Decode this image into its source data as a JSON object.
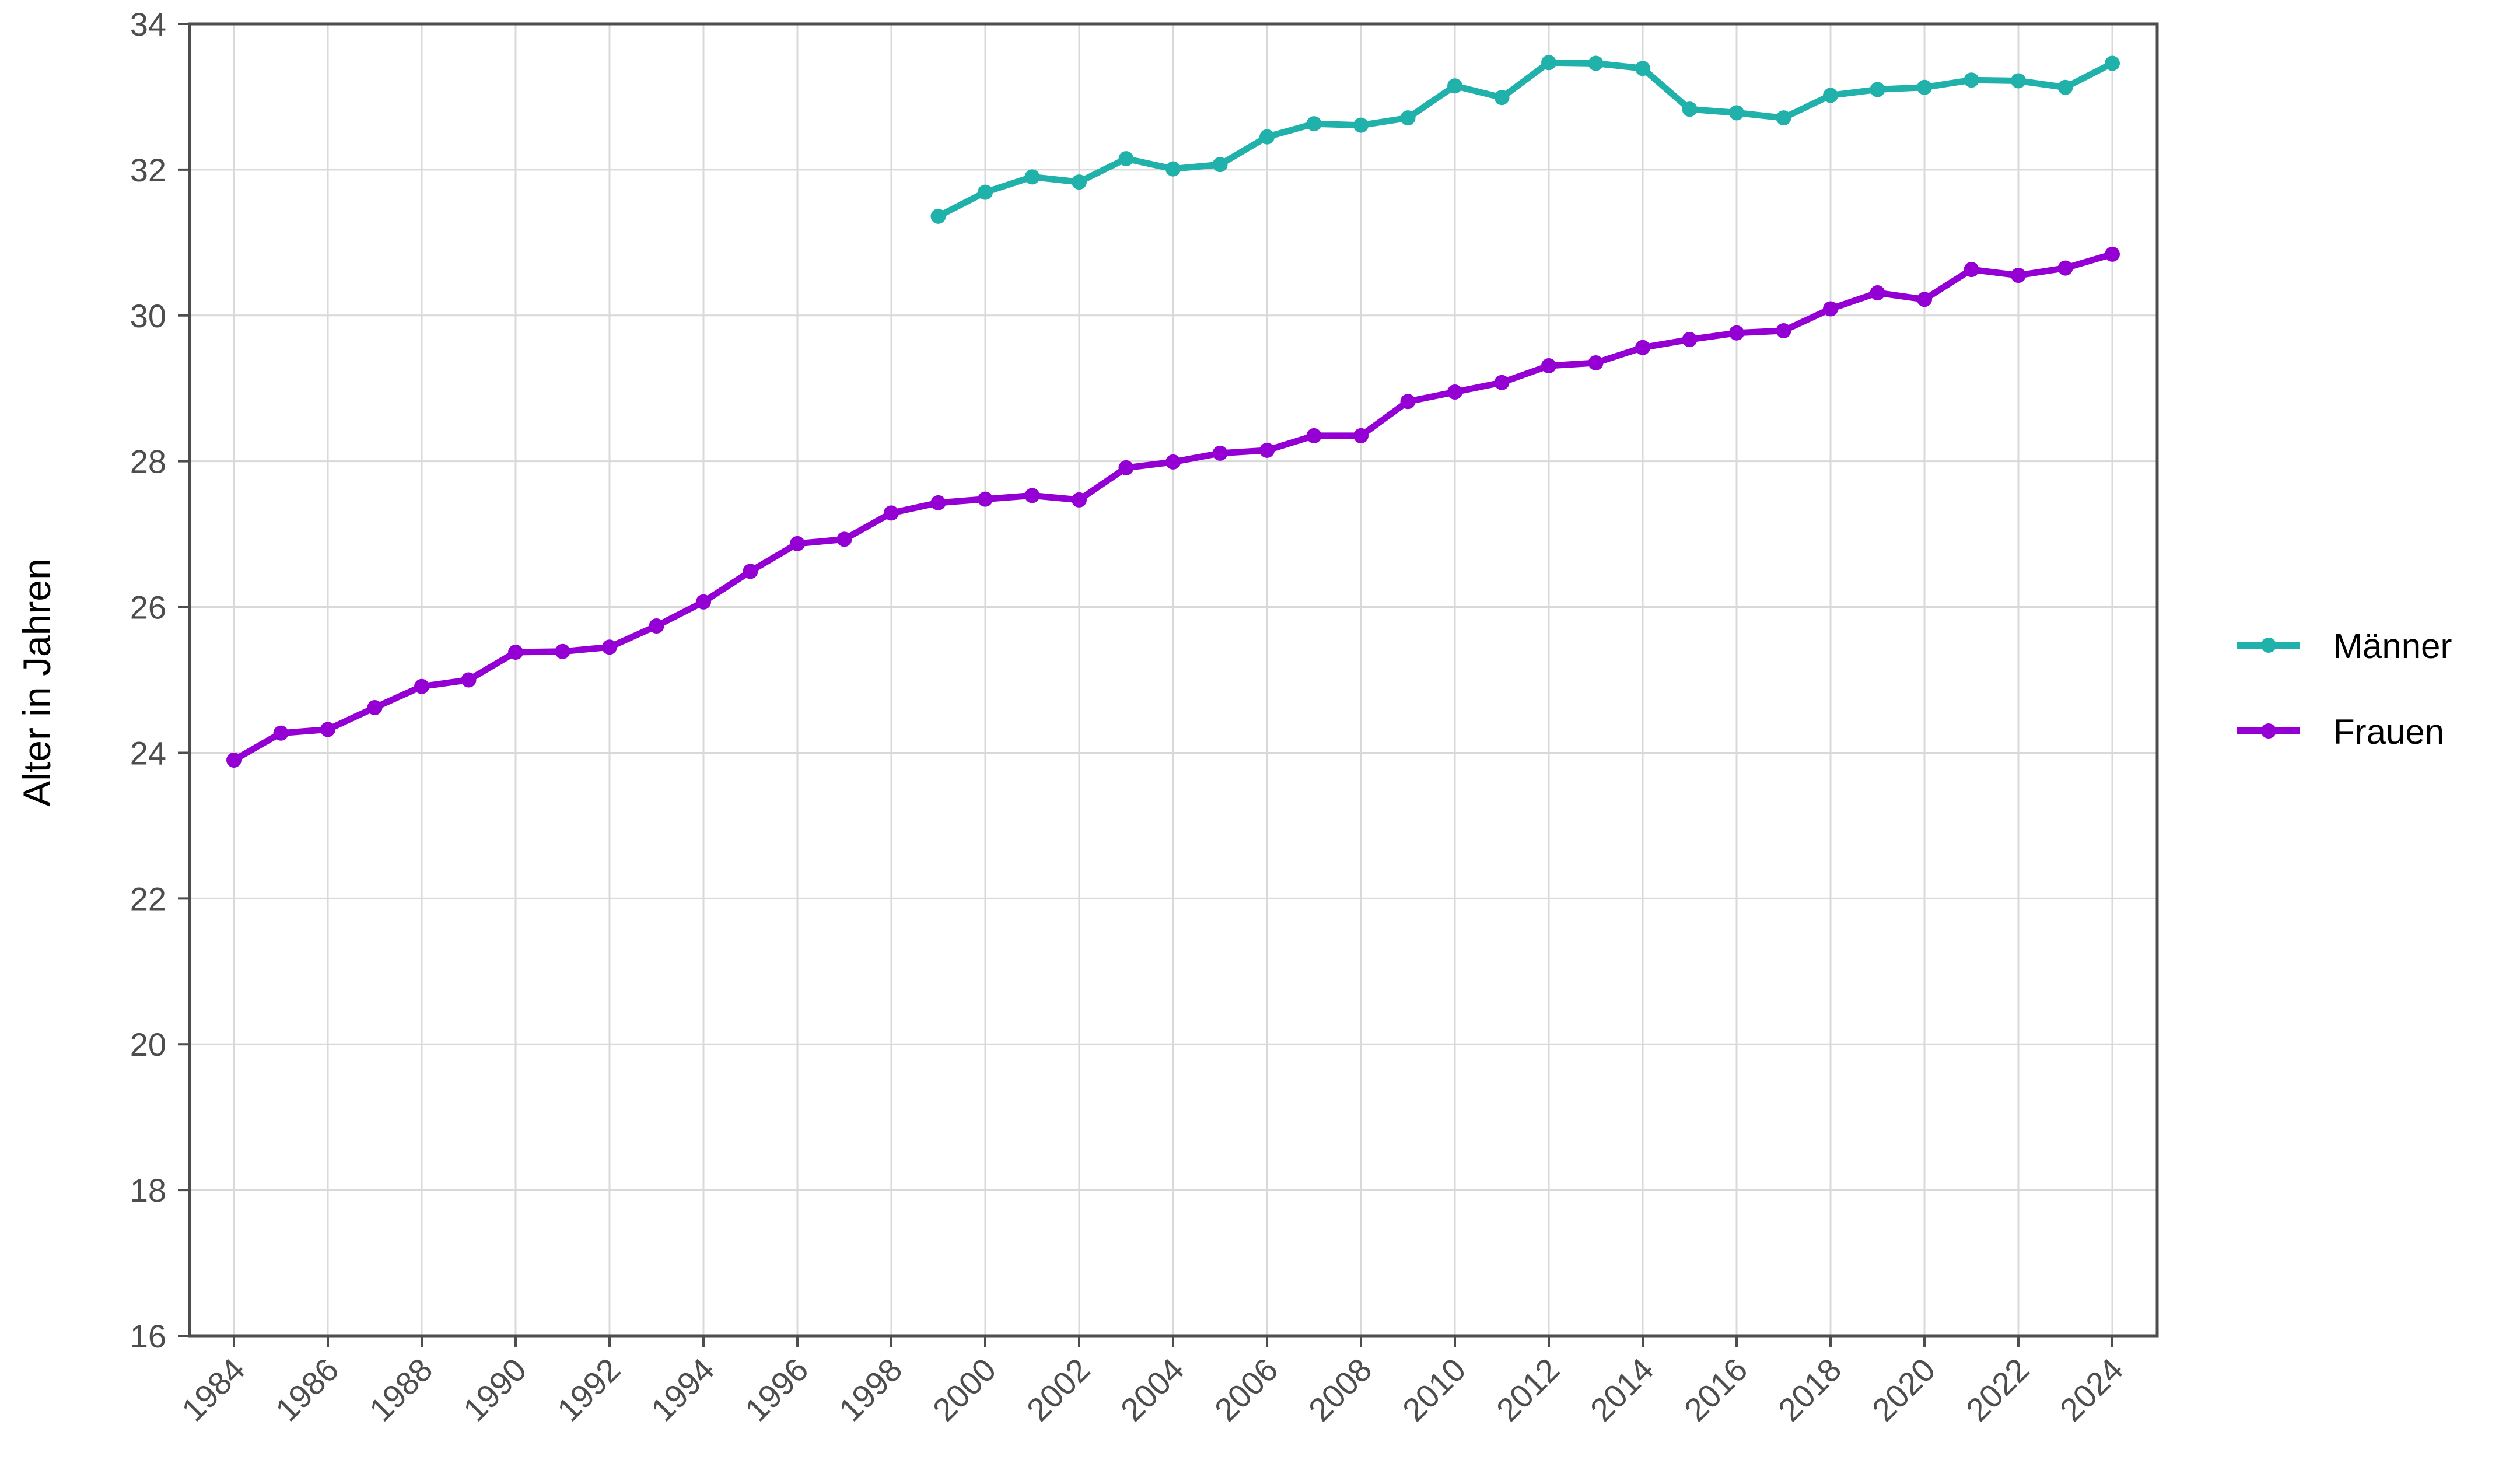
{
  "chart_data": {
    "type": "line",
    "title": "",
    "xlabel": "",
    "ylabel": "Alter in Jahren",
    "ylim": [
      16,
      34
    ],
    "xlim": [
      1983,
      2025
    ],
    "y_ticks": [
      16,
      18,
      20,
      22,
      24,
      26,
      28,
      30,
      32,
      34
    ],
    "x_ticks": [
      1984,
      1986,
      1988,
      1990,
      1992,
      1994,
      1996,
      1998,
      2000,
      2002,
      2004,
      2006,
      2008,
      2010,
      2012,
      2014,
      2016,
      2018,
      2020,
      2022,
      2024
    ],
    "grid": true,
    "legend_position": "right",
    "series": [
      {
        "name": "Männer",
        "color": "#20B2AA",
        "x": [
          1999,
          2000,
          2001,
          2002,
          2003,
          2004,
          2005,
          2006,
          2007,
          2008,
          2009,
          2010,
          2011,
          2012,
          2013,
          2014,
          2015,
          2016,
          2017,
          2018,
          2019,
          2020,
          2021,
          2022,
          2023,
          2024
        ],
        "values": [
          31.36,
          31.69,
          31.9,
          31.83,
          32.15,
          32.01,
          32.07,
          32.45,
          32.63,
          32.61,
          32.71,
          33.15,
          32.99,
          33.47,
          33.46,
          33.39,
          32.83,
          32.78,
          32.71,
          33.02,
          33.1,
          33.13,
          33.23,
          33.22,
          33.13,
          33.46
        ]
      },
      {
        "name": "Frauen",
        "color": "#9400D3",
        "x": [
          1984,
          1985,
          1986,
          1987,
          1988,
          1989,
          1990,
          1991,
          1992,
          1993,
          1994,
          1995,
          1996,
          1997,
          1998,
          1999,
          2000,
          2001,
          2002,
          2003,
          2004,
          2005,
          2006,
          2007,
          2008,
          2009,
          2010,
          2011,
          2012,
          2013,
          2014,
          2015,
          2016,
          2017,
          2018,
          2019,
          2020,
          2021,
          2022,
          2023,
          2024
        ],
        "values": [
          23.9,
          24.27,
          24.32,
          24.62,
          24.91,
          25.0,
          25.38,
          25.39,
          25.45,
          25.74,
          26.07,
          26.49,
          26.87,
          26.93,
          27.29,
          27.43,
          27.48,
          27.53,
          27.47,
          27.91,
          27.99,
          28.11,
          28.15,
          28.35,
          28.35,
          28.82,
          28.95,
          29.08,
          29.31,
          29.35,
          29.56,
          29.67,
          29.76,
          29.79,
          30.09,
          30.31,
          30.22,
          30.63,
          30.55,
          30.65,
          30.84
        ]
      }
    ]
  },
  "legend": {
    "items": [
      {
        "label": "Männer",
        "color": "#20B2AA"
      },
      {
        "label": "Frauen",
        "color": "#9400D3"
      }
    ]
  },
  "style": {
    "grid_color": "#d9d9d9",
    "axis_color": "#4d4d4d",
    "background": "#ffffff"
  }
}
